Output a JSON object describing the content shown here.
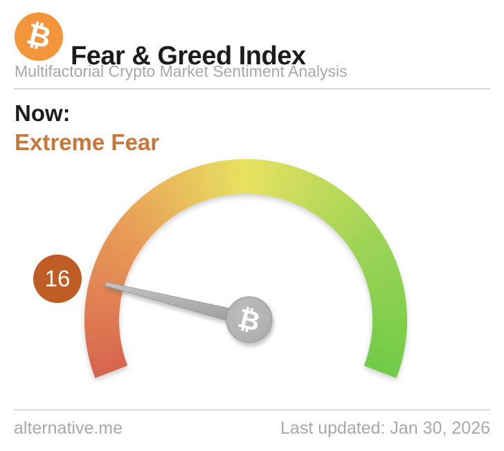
{
  "header": {
    "logo_symbol": "₿",
    "title": "Fear & Greed Index",
    "subtitle": "Multifactorial Crypto Market Sentiment Analysis"
  },
  "status": {
    "label": "Now:",
    "value": "Extreme Fear"
  },
  "chart_data": {
    "type": "gauge",
    "title": "Fear & Greed Index",
    "value": 16,
    "min": 0,
    "max": 100,
    "classification": "Extreme Fear",
    "start_angle_deg": 159,
    "sweep_deg": 222,
    "band_thickness_px": 50,
    "color_stops": [
      {
        "t": 0.0,
        "color": "#d7654f"
      },
      {
        "t": 0.25,
        "color": "#e89a56"
      },
      {
        "t": 0.5,
        "color": "#e7e160"
      },
      {
        "t": 0.75,
        "color": "#9fd455"
      },
      {
        "t": 1.0,
        "color": "#6fcb47"
      }
    ],
    "needle_color_light": "#c6c6c6",
    "needle_color_dark": "#9d9d9d",
    "hub_color": "#acacac",
    "hub_symbol": "₿",
    "badge": {
      "text": "16",
      "color": "#bf5d26"
    }
  },
  "footer": {
    "source": "alternative.me",
    "last_updated": "Last updated: Jan 30, 2026"
  },
  "colors": {
    "logo_orange": "#f2953b",
    "accent_orange": "#c8773c",
    "text_dark": "#1c1c1c",
    "text_gray": "#a8a8a8",
    "divider": "#bdbdbd"
  }
}
